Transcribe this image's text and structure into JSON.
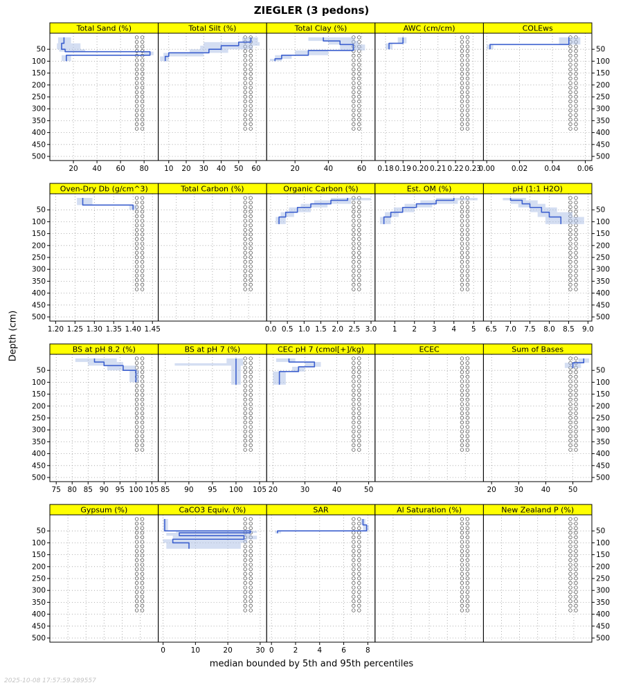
{
  "title": "ZIEGLER (3 pedons)",
  "ylabel": "Depth (cm)",
  "footer": "median bounded by 5th and 95th percentiles",
  "watermark": "2025-10-08 17:57:59.289557",
  "colors": {
    "strip_bg": "#FFFF00",
    "strip_text": "#000000",
    "median_line": "#3B5FCE",
    "band_fill": "#A9BEE6",
    "grid": "#999999",
    "cf_stroke": "#3A3A3A",
    "axis_text": "#000000"
  },
  "chart_data": {
    "type": "line",
    "variant": "soil-depth-profile-lattice",
    "depth_ticks": [
      50,
      100,
      150,
      200,
      250,
      300,
      350,
      400,
      450,
      500
    ],
    "depth_lim": [
      0,
      515
    ],
    "cf": {
      "depth_top": 0,
      "depth_bottom": 400
    },
    "rows": [
      [
        {
          "title": "Total Sand (%)",
          "xlim": [
            0,
            92
          ],
          "xtick_values": [
            20,
            40,
            60,
            80
          ],
          "xtick_labels": [
            "20",
            "40",
            "60",
            "80"
          ],
          "segments": {
            "top": [
              0,
              25,
              50,
              60,
              75
            ],
            "bottom": [
              25,
              50,
              60,
              75,
              100
            ],
            "median": [
              12,
              10,
              13,
              85,
              14
            ],
            "p5": [
              7,
              6,
              8,
              80,
              10
            ],
            "p95": [
              18,
              26,
              30,
              88,
              18
            ]
          }
        },
        {
          "title": "Total Silt (%)",
          "xlim": [
            4,
            66
          ],
          "xtick_values": [
            10,
            20,
            30,
            40,
            50,
            60
          ],
          "xtick_labels": [
            "10",
            "20",
            "30",
            "40",
            "50",
            "60"
          ],
          "segments": {
            "top": [
              0,
              20,
              35,
              50,
              65,
              80
            ],
            "bottom": [
              20,
              35,
              50,
              65,
              80,
              100
            ],
            "median": [
              57,
              50,
              40,
              33,
              10,
              8
            ],
            "p5": [
              52,
              30,
              28,
              22,
              7,
              5
            ],
            "p95": [
              61,
              62,
              58,
              44,
              30,
              10
            ]
          }
        },
        {
          "title": "Total Clay (%)",
          "xlim": [
            3,
            68
          ],
          "xtick_values": [
            20,
            40,
            60
          ],
          "xtick_labels": [
            "20",
            "40",
            "60"
          ],
          "segments": {
            "top": [
              0,
              15,
              30,
              55,
              75,
              90
            ],
            "bottom": [
              15,
              30,
              55,
              75,
              90,
              100
            ],
            "median": [
              37,
              47,
              55,
              28,
              12,
              8
            ],
            "p5": [
              28,
              40,
              47,
              20,
              8,
              5
            ],
            "p95": [
              56,
              58,
              62,
              40,
              18,
              12
            ]
          }
        },
        {
          "title": "AWC (cm/cm)",
          "xlim": [
            0.174,
            0.236
          ],
          "xtick_values": [
            0.18,
            0.19,
            0.2,
            0.21,
            0.22,
            0.23
          ],
          "xtick_labels": [
            "0.18",
            "0.19",
            "0.20",
            "0.21",
            "0.22",
            "0.23"
          ],
          "segments": {
            "top": [
              0,
              25
            ],
            "bottom": [
              25,
              50
            ],
            "median": [
              0.19,
              0.182
            ],
            "p5": [
              0.187,
              0.18
            ],
            "p95": [
              0.192,
              0.184
            ]
          }
        },
        {
          "title": "COLEws",
          "xlim": [
            -0.002,
            0.064
          ],
          "xtick_values": [
            0,
            0.02,
            0.04,
            0.06
          ],
          "xtick_labels": [
            "0.00",
            "0.02",
            "0.04",
            "0.06"
          ],
          "segments": {
            "top": [
              0,
              30
            ],
            "bottom": [
              30,
              50
            ],
            "median": [
              0.05,
              0.002
            ],
            "p5": [
              0.044,
              0
            ],
            "p95": [
              0.057,
              0.004
            ]
          }
        }
      ],
      [
        {
          "title": "Oven-Dry Db (g/cm^3)",
          "xlim": [
            1.185,
            1.465
          ],
          "xtick_values": [
            1.2,
            1.25,
            1.3,
            1.35,
            1.4,
            1.45
          ],
          "xtick_labels": [
            "1.20",
            "1.25",
            "1.30",
            "1.35",
            "1.40",
            "1.45"
          ],
          "segments": {
            "top": [
              0,
              30
            ],
            "bottom": [
              30,
              50
            ],
            "median": [
              1.27,
              1.4
            ],
            "p5": [
              1.255,
              1.39
            ],
            "p95": [
              1.295,
              1.41
            ]
          }
        },
        {
          "title": "Total Carbon (%)",
          "xlim": [
            0,
            1
          ],
          "xtick_values": [],
          "xtick_labels": [],
          "segments": null
        },
        {
          "title": "Organic Carbon (%)",
          "xlim": [
            -0.12,
            3.12
          ],
          "xtick_values": [
            0,
            0.5,
            1,
            1.5,
            2,
            2.5,
            3
          ],
          "xtick_labels": [
            "0.0",
            "0.5",
            "1.0",
            "1.5",
            "2.0",
            "2.5",
            "3.0"
          ],
          "segments": {
            "top": [
              0,
              10,
              25,
              40,
              60,
              80
            ],
            "bottom": [
              10,
              25,
              40,
              60,
              80,
              110
            ],
            "median": [
              2.3,
              1.8,
              1.2,
              0.8,
              0.45,
              0.25
            ],
            "p5": [
              1.8,
              1.3,
              0.9,
              0.55,
              0.3,
              0.15
            ],
            "p95": [
              3.0,
              2.4,
              1.7,
              1.2,
              0.7,
              0.45
            ]
          }
        },
        {
          "title": "Est. OM (%)",
          "xlim": [
            0,
            5.5
          ],
          "xtick_values": [
            1,
            2,
            3,
            4,
            5
          ],
          "xtick_labels": [
            "1",
            "2",
            "3",
            "4",
            "5"
          ],
          "segments": {
            "top": [
              0,
              10,
              25,
              40,
              60,
              80
            ],
            "bottom": [
              10,
              25,
              40,
              60,
              80,
              110
            ],
            "median": [
              4.0,
              3.1,
              2.1,
              1.4,
              0.8,
              0.45
            ],
            "p5": [
              3.1,
              2.3,
              1.5,
              0.95,
              0.5,
              0.25
            ],
            "p95": [
              5.2,
              4.2,
              2.9,
              2.0,
              1.2,
              0.8
            ]
          }
        },
        {
          "title": "pH (1:1 H2O)",
          "xlim": [
            6.3,
            9.1
          ],
          "xtick_values": [
            6.5,
            7,
            7.5,
            8,
            8.5,
            9
          ],
          "xtick_labels": [
            "6.5",
            "7.0",
            "7.5",
            "8.0",
            "8.5",
            "9.0"
          ],
          "segments": {
            "top": [
              0,
              10,
              25,
              40,
              60,
              80
            ],
            "bottom": [
              10,
              25,
              40,
              60,
              80,
              110
            ],
            "median": [
              7.0,
              7.3,
              7.5,
              7.8,
              8.0,
              8.3
            ],
            "p5": [
              6.8,
              7.0,
              7.2,
              7.5,
              7.7,
              7.9
            ],
            "p95": [
              7.4,
              7.7,
              7.9,
              8.2,
              8.6,
              8.9
            ]
          }
        }
      ],
      [
        {
          "title": "BS at pH 8.2 (%)",
          "xlim": [
            73,
            107
          ],
          "xtick_values": [
            75,
            80,
            85,
            90,
            95,
            100,
            105
          ],
          "xtick_labels": [
            "75",
            "80",
            "85",
            "90",
            "95",
            "100",
            "105"
          ],
          "segments": {
            "top": [
              0,
              15,
              30,
              50
            ],
            "bottom": [
              15,
              30,
              50,
              100
            ],
            "median": [
              87,
              90,
              96,
              100
            ],
            "p5": [
              81,
              85,
              91,
              98
            ],
            "p95": [
              94,
              96,
              100,
              101
            ]
          }
        },
        {
          "title": "BS at pH 7 (%)",
          "xlim": [
            83.5,
            106.5
          ],
          "xtick_values": [
            85,
            90,
            95,
            100,
            105
          ],
          "xtick_labels": [
            "85",
            "90",
            "95",
            "100",
            "105"
          ],
          "segments": {
            "top": [
              0,
              20,
              30
            ],
            "bottom": [
              20,
              30,
              110
            ],
            "median": [
              100,
              100,
              100
            ],
            "p5": [
              98,
              87,
              99
            ],
            "p95": [
              101.5,
              101.5,
              101
            ]
          }
        },
        {
          "title": "CEC pH 7 (cmol[+]/kg)",
          "xlim": [
            18,
            52
          ],
          "xtick_values": [
            20,
            30,
            40,
            50
          ],
          "xtick_labels": [
            "20",
            "30",
            "40",
            "50"
          ],
          "segments": {
            "top": [
              0,
              15,
              35,
              55
            ],
            "bottom": [
              15,
              35,
              55,
              110
            ],
            "median": [
              25,
              33,
              28,
              22
            ],
            "p5": [
              21,
              30,
              26,
              20
            ],
            "p95": [
              27,
              35,
              30,
              24
            ]
          }
        },
        {
          "title": "ECEC",
          "xlim": [
            0,
            1
          ],
          "xtick_values": [],
          "xtick_labels": [],
          "segments": null
        },
        {
          "title": "Sum of Bases",
          "xlim": [
            17,
            57
          ],
          "xtick_values": [
            20,
            30,
            40,
            50
          ],
          "xtick_labels": [
            "20",
            "30",
            "40",
            "50"
          ],
          "segments": {
            "top": [
              0,
              18
            ],
            "bottom": [
              18,
              40
            ],
            "median": [
              54,
              50
            ],
            "p5": [
              52,
              47
            ],
            "p95": [
              56,
              53
            ]
          }
        }
      ],
      [
        {
          "title": "Gypsum (%)",
          "xlim": [
            0,
            1
          ],
          "xtick_values": [],
          "xtick_labels": [],
          "segments": null
        },
        {
          "title": "CaCO3 Equiv. (%)",
          "xlim": [
            -1.5,
            32
          ],
          "xtick_values": [
            0,
            10,
            20,
            30
          ],
          "xtick_labels": [
            "0",
            "10",
            "20",
            "30"
          ],
          "segments": {
            "top": [
              0,
              50,
              58,
              70,
              85,
              100
            ],
            "bottom": [
              50,
              58,
              70,
              85,
              100,
              125
            ],
            "median": [
              0.5,
              27,
              5,
              25,
              3,
              8
            ],
            "p5": [
              0,
              4,
              1,
              3,
              0,
              1
            ],
            "p95": [
              1.5,
              29,
              27,
              29,
              26,
              24
            ]
          }
        },
        {
          "title": "SAR",
          "xlim": [
            -0.4,
            8.6
          ],
          "xtick_values": [
            0,
            2,
            4,
            6,
            8
          ],
          "xtick_labels": [
            "0",
            "2",
            "4",
            "6",
            "8"
          ],
          "segments": {
            "top": [
              0,
              25,
              50
            ],
            "bottom": [
              25,
              50,
              60
            ],
            "median": [
              7.6,
              7.9,
              0.5
            ],
            "p5": [
              7.4,
              7.6,
              0.3
            ],
            "p95": [
              7.8,
              8.1,
              0.8
            ]
          }
        },
        {
          "title": "Al Saturation (%)",
          "xlim": [
            0,
            1
          ],
          "xtick_values": [],
          "xtick_labels": [],
          "segments": null
        },
        {
          "title": "New Zealand P (%)",
          "xlim": [
            0,
            1
          ],
          "xtick_values": [],
          "xtick_labels": [],
          "segments": null
        }
      ]
    ]
  }
}
